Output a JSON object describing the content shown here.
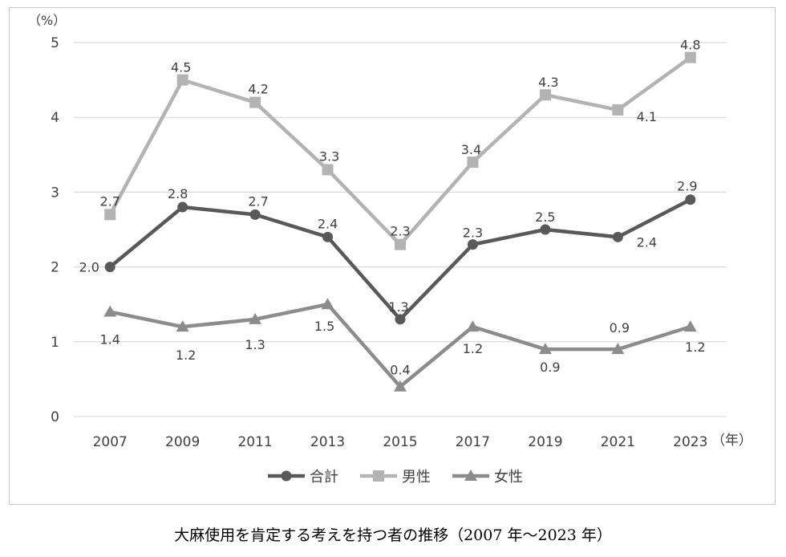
{
  "chart_data": {
    "type": "line",
    "title": "",
    "ylabel": "（%）",
    "xlabel": "（年）",
    "ylim": [
      0,
      5
    ],
    "yticks": [
      "0",
      "1",
      "2",
      "3",
      "4",
      "5"
    ],
    "categories": [
      "2007",
      "2009",
      "2011",
      "2013",
      "2015",
      "2017",
      "2019",
      "2021",
      "2023"
    ],
    "grid": true,
    "legend_position": "bottom",
    "series": [
      {
        "name": "合計",
        "marker": "circle",
        "color": "#595959",
        "values": [
          2.0,
          2.8,
          2.7,
          2.4,
          1.3,
          2.3,
          2.5,
          2.4,
          2.9
        ],
        "labels": [
          "2.0",
          "2.8",
          "2.7",
          "2.4",
          "1.3",
          "2.3",
          "2.5",
          "2.4",
          "2.9"
        ]
      },
      {
        "name": "男性",
        "marker": "square",
        "color": "#b3b3b3",
        "values": [
          2.7,
          4.5,
          4.2,
          3.3,
          2.3,
          3.4,
          4.3,
          4.1,
          4.8
        ],
        "labels": [
          "2.7",
          "4.5",
          "4.2",
          "3.3",
          "2.3",
          "3.4",
          "4.3",
          "4.1",
          "4.8"
        ]
      },
      {
        "name": "女性",
        "marker": "triangle",
        "color": "#8c8c8c",
        "values": [
          1.4,
          1.2,
          1.3,
          1.5,
          0.4,
          1.2,
          0.9,
          0.9,
          1.2
        ],
        "labels": [
          "1.4",
          "1.2",
          "1.3",
          "1.5",
          "0.4",
          "1.2",
          "0.9",
          "0.9",
          "1.2"
        ]
      }
    ]
  },
  "caption": "大麻使用を肯定する考えを持つ者の推移（2007 年〜2023 年）"
}
